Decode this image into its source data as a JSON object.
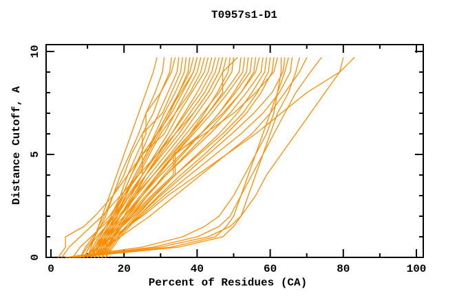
{
  "chart_data": {
    "type": "line",
    "title": "T0957s1-D1",
    "xlabel": "Percent of Residues (CA)",
    "ylabel": "Distance Cutoff, A",
    "xlim": [
      0,
      100
    ],
    "ylim": [
      0,
      10
    ],
    "grid": false,
    "legend": false,
    "line_color": "#ff8c00",
    "axis_color": "#000000",
    "background": "#ffffff",
    "x_major_ticks": [
      0,
      20,
      40,
      60,
      80,
      100
    ],
    "x_major_tick_labels": [
      "0",
      "20",
      "40",
      "60",
      "80",
      "100"
    ],
    "x_minor_ticks": [
      10,
      30,
      50,
      70,
      90
    ],
    "y_major_ticks": [
      0,
      5,
      10
    ],
    "y_major_tick_labels": [
      "0",
      "5",
      "10"
    ],
    "y_minor_ticks": [
      1,
      2,
      3,
      4,
      6,
      7,
      8,
      9
    ],
    "cutoffs": [
      0,
      0.5,
      1,
      1.5,
      2,
      3,
      4,
      5,
      6,
      7,
      8,
      9,
      9.7
    ],
    "series": [
      [
        10,
        11,
        12,
        13,
        14,
        16,
        18,
        20,
        22,
        24,
        26,
        28,
        29
      ],
      [
        9,
        10.5,
        12,
        13.5,
        15,
        17,
        19,
        21.5,
        24,
        26,
        28.5,
        30.5,
        31
      ],
      [
        11,
        12,
        13.5,
        15,
        16.5,
        19,
        21,
        23.5,
        26,
        26,
        30,
        32.5,
        33
      ],
      [
        8,
        10,
        12,
        13,
        14.5,
        17,
        20,
        22,
        25,
        28,
        30,
        33,
        34
      ],
      [
        12,
        13,
        14,
        15.5,
        17,
        19.5,
        22,
        24.5,
        27,
        29.5,
        32,
        34.5,
        35
      ],
      [
        10,
        11.5,
        13,
        15,
        16.5,
        19.5,
        22,
        25,
        25,
        30.5,
        33,
        35.5,
        36
      ],
      [
        13,
        14,
        15,
        16.5,
        18,
        20.5,
        23,
        26,
        28.5,
        31,
        34,
        36.5,
        37
      ],
      [
        6,
        8,
        11,
        14,
        17,
        20,
        23,
        26,
        29,
        32,
        35,
        37.5,
        38
      ],
      [
        11,
        12.5,
        14,
        16,
        17.5,
        20.5,
        23.5,
        26.5,
        29.5,
        32.5,
        35,
        38,
        39
      ],
      [
        10,
        12,
        13.5,
        15,
        17,
        20,
        23,
        26,
        29,
        32,
        35.5,
        39,
        40
      ],
      [
        14,
        15,
        16,
        17.5,
        19,
        22,
        25,
        25,
        31,
        34,
        37,
        40,
        41
      ],
      [
        8,
        9.5,
        11.5,
        13.5,
        16,
        20,
        24,
        27,
        30,
        34,
        38,
        41,
        42
      ],
      [
        12,
        13,
        14.5,
        16,
        18,
        21.5,
        25,
        28.5,
        32,
        35,
        38.5,
        42,
        43
      ],
      [
        15,
        16,
        17,
        18.5,
        20,
        23,
        26,
        29.5,
        33,
        36.5,
        40,
        43,
        44
      ],
      [
        9,
        10.5,
        12.5,
        15,
        17,
        21,
        25,
        29,
        33,
        37,
        41,
        44,
        45
      ],
      [
        13,
        14,
        15.5,
        17,
        19,
        22.5,
        26,
        30,
        34,
        38,
        42,
        45,
        46
      ],
      [
        10,
        11.5,
        13,
        15,
        17.5,
        21.5,
        26,
        30.5,
        35,
        39,
        43,
        46,
        47
      ],
      [
        12,
        13.5,
        15,
        17,
        19,
        23,
        27,
        31.5,
        36,
        40,
        44,
        47,
        48
      ],
      [
        14,
        15.5,
        17,
        19,
        21,
        25,
        29,
        33.5,
        38,
        42,
        45.5,
        48.5,
        49
      ],
      [
        11,
        12.5,
        14.5,
        16.5,
        19,
        23.5,
        28,
        32.5,
        37,
        41.5,
        46,
        49.5,
        50
      ],
      [
        13,
        14.5,
        16,
        18,
        20.5,
        25,
        29.5,
        34,
        38.5,
        43,
        47,
        47,
        51
      ],
      [
        10,
        12,
        14,
        16,
        18.5,
        23,
        28,
        33,
        38,
        43,
        47.5,
        51.5,
        52
      ],
      [
        12,
        13.5,
        15.5,
        17.5,
        20,
        24.5,
        29,
        34,
        39,
        44,
        48.5,
        52.5,
        53
      ],
      [
        14,
        15.5,
        17.5,
        19.5,
        22,
        26.5,
        31,
        36,
        41,
        46,
        50,
        53.5,
        54
      ],
      [
        11,
        13,
        15,
        17.5,
        20,
        25,
        30,
        35.5,
        41,
        46,
        50.5,
        54.5,
        55
      ],
      [
        13,
        15,
        17,
        19,
        21.5,
        26.5,
        31.5,
        37,
        42.5,
        47.5,
        52,
        55.5,
        56
      ],
      [
        15,
        16.5,
        18.5,
        21,
        23.5,
        28.5,
        34,
        34,
        41,
        47,
        52,
        56,
        57
      ],
      [
        12,
        14,
        16,
        18.5,
        21,
        26,
        31.5,
        37.5,
        43.5,
        49,
        53.5,
        57.5,
        58
      ],
      [
        14,
        16,
        18,
        20.5,
        23,
        28.5,
        34,
        40,
        46,
        51,
        55,
        58.5,
        59
      ],
      [
        13,
        15,
        17,
        19.5,
        22.5,
        28,
        34,
        40.5,
        47,
        52.5,
        56.5,
        59.5,
        60
      ],
      [
        15,
        17,
        19,
        21.5,
        24,
        29.5,
        35.5,
        42,
        48,
        53.5,
        57.5,
        60.5,
        61
      ],
      [
        12,
        14,
        16.5,
        19,
        22,
        27.5,
        33.5,
        33.5,
        42,
        50,
        56,
        61,
        62
      ],
      [
        14,
        16,
        18,
        21,
        24,
        30,
        36.5,
        43,
        49.5,
        55.5,
        60.5,
        63.5,
        64
      ],
      [
        13,
        15.5,
        18,
        21,
        24.5,
        31,
        38,
        45,
        52,
        58,
        62.5,
        65.5,
        66
      ],
      [
        6,
        33,
        45,
        48,
        50,
        52,
        54,
        56,
        58,
        60,
        62,
        64,
        65
      ],
      [
        7,
        35,
        47,
        50,
        52,
        54,
        56,
        58,
        60,
        62,
        65,
        67,
        68
      ],
      [
        5,
        28,
        40,
        46,
        49,
        52,
        55,
        58,
        61,
        64,
        67,
        71,
        74
      ],
      [
        4,
        25,
        36,
        42,
        46,
        50,
        53,
        56,
        59,
        61,
        62,
        63,
        63
      ],
      [
        6,
        30,
        43,
        49,
        52,
        56,
        59,
        63,
        67,
        71,
        75,
        79,
        80
      ],
      [
        9,
        13,
        17,
        21,
        25,
        32,
        40,
        48,
        56,
        63,
        70,
        79,
        83
      ],
      [
        11,
        15,
        19,
        23,
        27,
        34,
        41,
        48,
        55,
        60,
        64,
        68,
        70
      ],
      [
        2,
        4,
        4,
        9,
        12,
        17,
        21,
        25,
        29,
        33,
        36,
        39,
        40
      ],
      [
        3,
        5,
        8,
        11,
        14,
        19,
        24,
        29,
        34,
        39,
        43,
        46,
        47
      ]
    ]
  }
}
